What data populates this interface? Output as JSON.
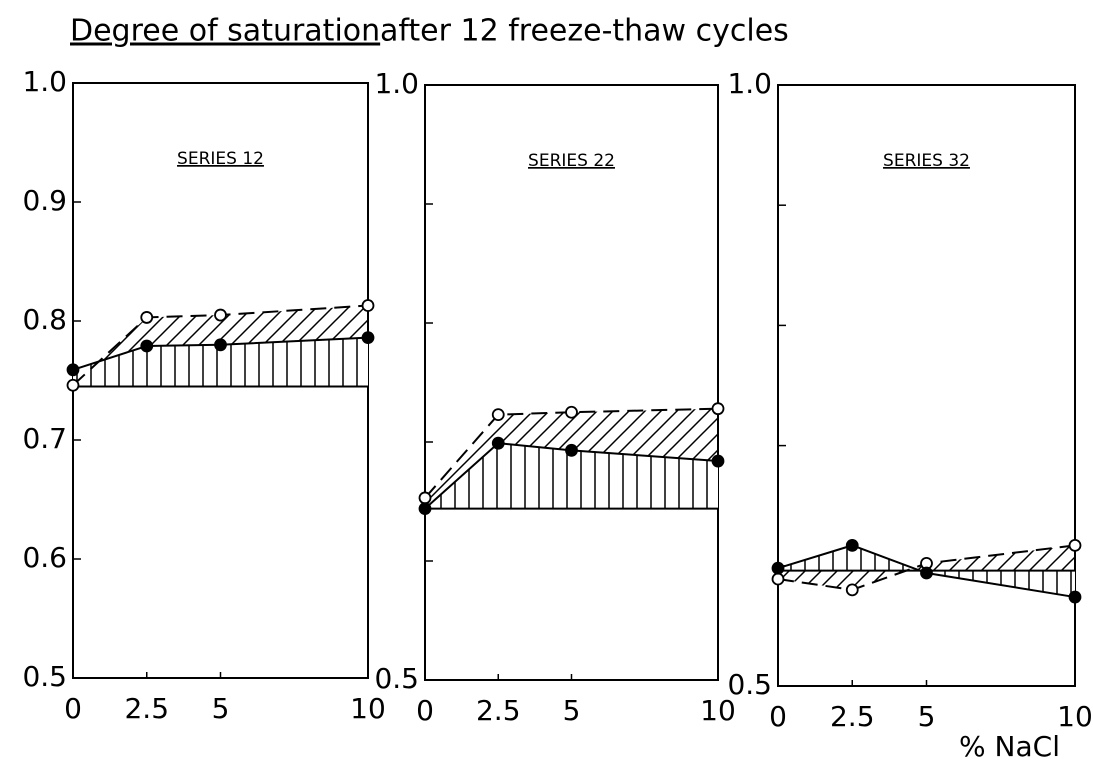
{
  "title_underlined": "Degree of saturation",
  "title_rest": "after 12 freeze-thaw cycles",
  "x_label": "% NaCl",
  "chart_data": [
    {
      "type": "line",
      "subtitle": "SERIES 12",
      "x": [
        0,
        2.5,
        5,
        10
      ],
      "xlim": [
        0,
        10
      ],
      "xticks": [
        0,
        2.5,
        5,
        10
      ],
      "ylim": [
        0.5,
        1
      ],
      "yticks": [
        0.5,
        0.6,
        0.7,
        0.8,
        0.9,
        {
          "value": 1,
          "label": "1.0"
        }
      ],
      "baseline": 0.745,
      "series": [
        {
          "color": "#000000",
          "style": "dashed",
          "marker": "open",
          "hatch": "diagonal",
          "values": [
            0.746,
            0.803,
            0.805,
            0.813
          ]
        },
        {
          "color": "#000000",
          "style": "solid",
          "marker": "filled",
          "hatch": "vertical",
          "values": [
            0.759,
            0.779,
            0.78,
            0.786
          ]
        }
      ]
    },
    {
      "type": "line",
      "subtitle": "SERIES 22",
      "x": [
        0,
        2.5,
        5,
        10
      ],
      "xlim": [
        0,
        10
      ],
      "xticks": [
        0,
        2.5,
        5,
        10
      ],
      "ylim": [
        0.5,
        1
      ],
      "yticks": [
        0.5,
        {
          "value": 0.6,
          "label": null
        },
        {
          "value": 0.7,
          "label": null
        },
        {
          "value": 0.8,
          "label": null
        },
        {
          "value": 0.9,
          "label": null
        },
        {
          "value": 1,
          "label": "1.0"
        }
      ],
      "baseline": 0.644,
      "series": [
        {
          "color": "#000000",
          "style": "dashed",
          "marker": "open",
          "hatch": "diagonal",
          "values": [
            0.653,
            0.723,
            0.725,
            0.728
          ]
        },
        {
          "color": "#000000",
          "style": "solid",
          "marker": "filled",
          "hatch": "vertical",
          "values": [
            0.644,
            0.699,
            0.693,
            0.684
          ]
        }
      ]
    },
    {
      "type": "line",
      "subtitle": "SERIES 32",
      "x": [
        0,
        2.5,
        5,
        10
      ],
      "xlim": [
        0,
        10
      ],
      "xticks": [
        0,
        2.5,
        5,
        10
      ],
      "ylim": [
        0.5,
        1
      ],
      "yticks": [
        0.5,
        {
          "value": 0.6,
          "label": null
        },
        {
          "value": 0.7,
          "label": null
        },
        {
          "value": 0.8,
          "label": null
        },
        {
          "value": 0.9,
          "label": null
        },
        {
          "value": 1,
          "label": "1.0"
        }
      ],
      "baseline": 0.596,
      "series": [
        {
          "color": "#000000",
          "style": "dashed",
          "marker": "open",
          "hatch": "diagonal",
          "values": [
            0.589,
            0.58,
            0.602,
            0.617
          ]
        },
        {
          "color": "#000000",
          "style": "solid",
          "marker": "filled",
          "hatch": "vertical",
          "values": [
            0.598,
            0.617,
            0.594,
            0.574
          ]
        }
      ]
    }
  ]
}
